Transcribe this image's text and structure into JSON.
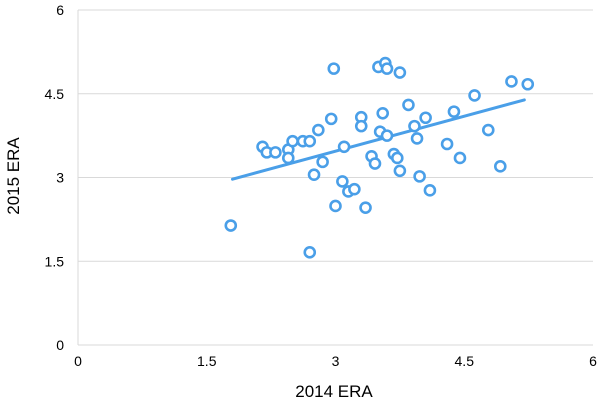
{
  "chart_data": {
    "type": "scatter",
    "xlabel": "2014 ERA",
    "ylabel": "2015 ERA",
    "xlim": [
      0,
      6
    ],
    "ylim": [
      0,
      6
    ],
    "xticks": [
      "0",
      "1.5",
      "3",
      "4.5",
      "6"
    ],
    "yticks": [
      "0",
      "1.5",
      "3",
      "4.5",
      "6"
    ],
    "grid": "horizontal",
    "color": "#4a9fe8",
    "trendline": {
      "from": [
        1.8,
        2.97
      ],
      "to": [
        5.2,
        4.39
      ]
    },
    "points": [
      [
        1.78,
        2.14
      ],
      [
        2.15,
        3.55
      ],
      [
        2.2,
        3.45
      ],
      [
        2.3,
        3.45
      ],
      [
        2.45,
        3.5
      ],
      [
        2.45,
        3.35
      ],
      [
        2.5,
        3.65
      ],
      [
        2.62,
        3.65
      ],
      [
        2.7,
        3.65
      ],
      [
        2.75,
        3.05
      ],
      [
        2.8,
        3.85
      ],
      [
        2.85,
        3.28
      ],
      [
        2.7,
        1.66
      ],
      [
        2.95,
        4.05
      ],
      [
        3.0,
        2.49
      ],
      [
        2.98,
        4.95
      ],
      [
        3.08,
        2.93
      ],
      [
        3.1,
        3.55
      ],
      [
        3.15,
        2.75
      ],
      [
        3.22,
        2.79
      ],
      [
        3.3,
        4.08
      ],
      [
        3.3,
        3.92
      ],
      [
        3.35,
        2.46
      ],
      [
        3.42,
        3.38
      ],
      [
        3.46,
        3.25
      ],
      [
        3.5,
        4.98
      ],
      [
        3.52,
        3.82
      ],
      [
        3.55,
        4.15
      ],
      [
        3.58,
        5.05
      ],
      [
        3.6,
        4.95
      ],
      [
        3.6,
        3.75
      ],
      [
        3.68,
        3.42
      ],
      [
        3.72,
        3.35
      ],
      [
        3.75,
        3.12
      ],
      [
        3.75,
        4.88
      ],
      [
        3.85,
        4.3
      ],
      [
        3.92,
        3.92
      ],
      [
        3.95,
        3.7
      ],
      [
        3.98,
        3.02
      ],
      [
        4.05,
        4.07
      ],
      [
        4.1,
        2.77
      ],
      [
        4.3,
        3.6
      ],
      [
        4.38,
        4.18
      ],
      [
        4.45,
        3.35
      ],
      [
        4.62,
        4.47
      ],
      [
        4.78,
        3.85
      ],
      [
        4.92,
        3.2
      ],
      [
        5.05,
        4.72
      ],
      [
        5.24,
        4.67
      ]
    ]
  }
}
